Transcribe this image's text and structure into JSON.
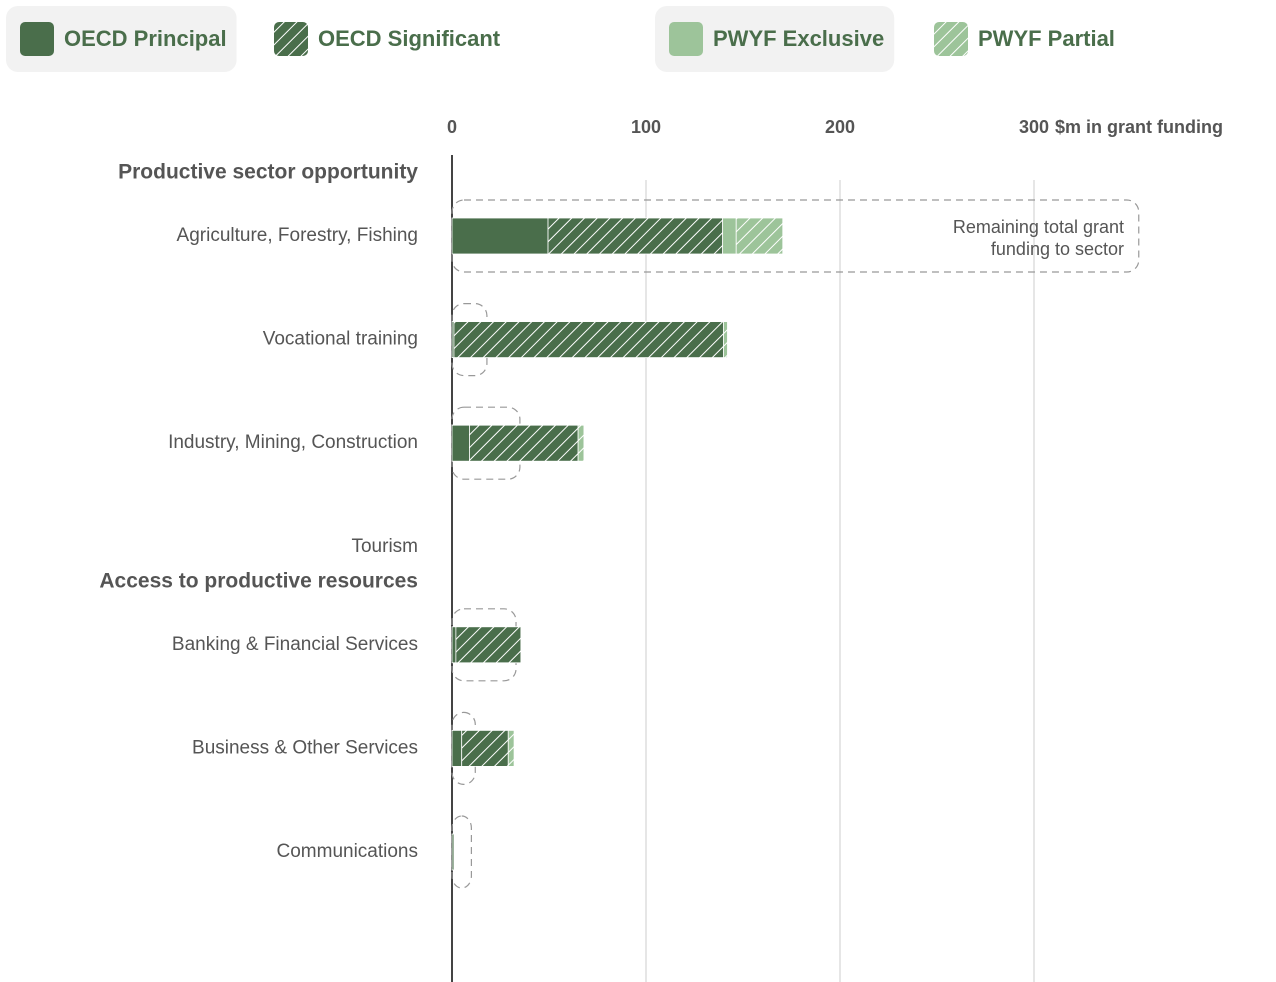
{
  "chart_data": {
    "type": "hbar-stacked",
    "xlabel": "$m in grant funding",
    "xlim": [
      0,
      424
    ],
    "xticks": [
      0,
      100,
      200,
      300
    ],
    "grid": true,
    "groups": [
      {
        "title": "Productive sector opportunity",
        "categories": [
          "Agriculture, Forestry, Fishing",
          "Vocational training",
          "Industry, Mining, Construction",
          "Tourism"
        ]
      },
      {
        "title": "Access to productive resources",
        "categories": [
          "Banking & Financial Services",
          "Business & Other Services",
          "Communications"
        ]
      }
    ],
    "series": [
      {
        "name": "OECD Principal",
        "color": "#4a6e4b",
        "pattern": "solid",
        "legend_highlight": true,
        "values": [
          49.5,
          1,
          9,
          0,
          2,
          5,
          1
        ]
      },
      {
        "name": "OECD Significant",
        "color": "#4a6e4b",
        "pattern": "hatch",
        "legend_highlight": false,
        "values": [
          90,
          139,
          56,
          0,
          33.5,
          24,
          0
        ]
      },
      {
        "name": "PWYF Exclusive",
        "color": "#9dc49a",
        "pattern": "solid",
        "legend_highlight": true,
        "values": [
          7,
          0,
          0,
          0,
          0,
          0,
          0
        ]
      },
      {
        "name": "PWYF Partial",
        "color": "#9dc49a",
        "pattern": "hatch",
        "legend_highlight": false,
        "values": [
          24,
          2,
          3,
          0,
          0,
          3,
          0
        ]
      }
    ],
    "totals": {
      "annotation": [
        "Remaining total grant",
        "funding to sector"
      ],
      "values": [
        354,
        18,
        35,
        0,
        33,
        12,
        10
      ]
    }
  }
}
